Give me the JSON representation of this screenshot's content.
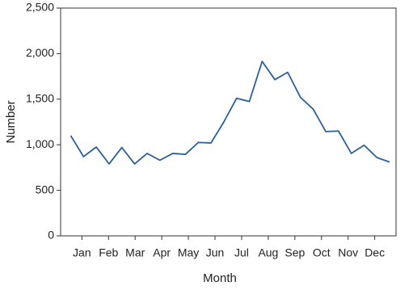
{
  "chart_data": {
    "type": "line",
    "x_label": "Month",
    "y_label": "Number",
    "x": [
      0.58,
      1.06,
      1.54,
      2.02,
      2.5,
      2.98,
      3.45,
      3.93,
      4.41,
      4.89,
      5.37,
      5.85,
      6.33,
      6.81,
      7.29,
      7.77,
      8.25,
      8.73,
      9.21,
      9.69,
      10.16,
      10.64,
      11.12,
      11.6,
      12.08,
      12.56
    ],
    "values": [
      1100,
      870,
      975,
      790,
      970,
      790,
      905,
      830,
      905,
      895,
      1025,
      1020,
      1250,
      1510,
      1475,
      1915,
      1715,
      1795,
      1520,
      1390,
      1145,
      1150,
      905,
      995,
      860,
      810
    ],
    "color": "#2a5f9e",
    "xlim": [
      0.2,
      12.8
    ],
    "xticks": [
      {
        "value": 1,
        "label": "Jan"
      },
      {
        "value": 2,
        "label": "Feb"
      },
      {
        "value": 3,
        "label": "Mar"
      },
      {
        "value": 4,
        "label": "Apr"
      },
      {
        "value": 5,
        "label": "May"
      },
      {
        "value": 6,
        "label": "Jun"
      },
      {
        "value": 7,
        "label": "Jul"
      },
      {
        "value": 8,
        "label": "Aug"
      },
      {
        "value": 9,
        "label": "Sep"
      },
      {
        "value": 10,
        "label": "Oct"
      },
      {
        "value": 11,
        "label": "Nov"
      },
      {
        "value": 12,
        "label": "Dec"
      }
    ],
    "ylim": [
      0,
      2500
    ],
    "yticks": [
      0,
      {
        "value": 500,
        "label": "500"
      },
      {
        "value": 1000,
        "label": "1,000"
      },
      {
        "value": 1500,
        "label": "1,500"
      },
      {
        "value": 2000,
        "label": "2,000"
      },
      {
        "value": 2500,
        "label": "2,500"
      }
    ],
    "grid": false
  }
}
